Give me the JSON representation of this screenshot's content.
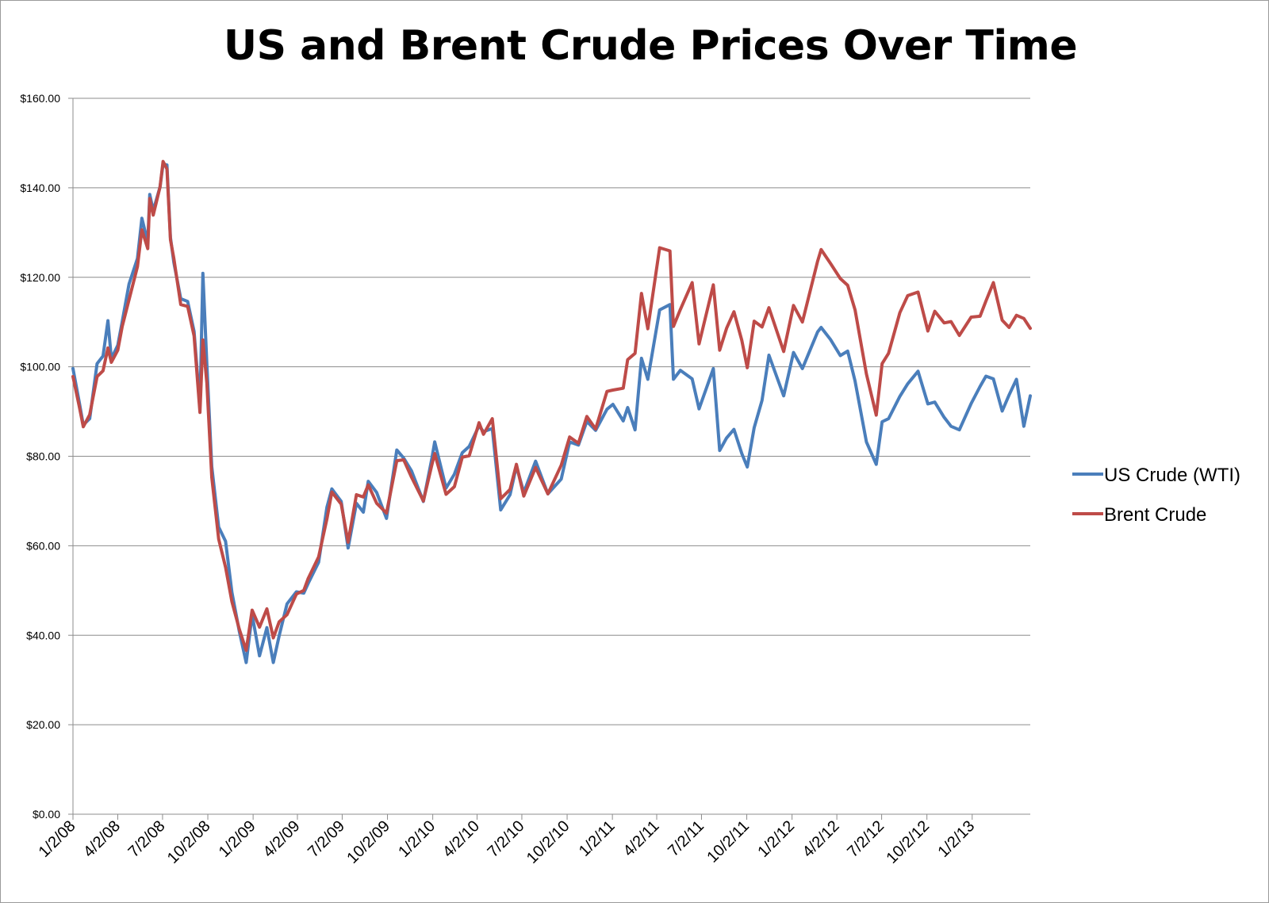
{
  "chart_data": {
    "type": "line",
    "title": "US and Brent Crude Prices Over Time",
    "xlabel": "",
    "ylabel": "",
    "ylim": [
      0,
      160
    ],
    "y_ticks": [
      "$0.00",
      "$20.00",
      "$40.00",
      "$60.00",
      "$80.00",
      "$100.00",
      "$120.00",
      "$140.00",
      "$160.00"
    ],
    "x_range": [
      "2008-01-02",
      "2013-04-30"
    ],
    "x_ticks": [
      "1/2/08",
      "4/2/08",
      "7/2/08",
      "10/2/08",
      "1/2/09",
      "4/2/09",
      "7/2/09",
      "10/2/09",
      "1/2/10",
      "4/2/10",
      "7/2/10",
      "10/2/10",
      "1/2/11",
      "4/2/11",
      "7/2/11",
      "10/2/11",
      "1/2/12",
      "4/2/12",
      "7/2/12",
      "10/2/12",
      "1/2/13"
    ],
    "x_tick_dates": [
      "2008-01-02",
      "2008-04-02",
      "2008-07-02",
      "2008-10-02",
      "2009-01-02",
      "2009-04-02",
      "2009-07-02",
      "2009-10-02",
      "2010-01-02",
      "2010-04-02",
      "2010-07-02",
      "2010-10-02",
      "2011-01-02",
      "2011-04-02",
      "2011-07-02",
      "2011-10-02",
      "2012-01-02",
      "2012-04-02",
      "2012-07-02",
      "2012-10-02",
      "2013-01-02"
    ],
    "grid": true,
    "legend_position": "right",
    "series": [
      {
        "name": "US Crude (WTI)",
        "color": "#4a7ebb",
        "points": [
          [
            "2008-01-02",
            99.6
          ],
          [
            "2008-01-15",
            91.9
          ],
          [
            "2008-01-23",
            87.0
          ],
          [
            "2008-02-05",
            88.4
          ],
          [
            "2008-02-20",
            100.7
          ],
          [
            "2008-03-03",
            102.4
          ],
          [
            "2008-03-13",
            110.3
          ],
          [
            "2008-03-20",
            101.8
          ],
          [
            "2008-04-02",
            104.8
          ],
          [
            "2008-04-11",
            110.1
          ],
          [
            "2008-04-25",
            118.5
          ],
          [
            "2008-05-12",
            124.2
          ],
          [
            "2008-05-21",
            133.2
          ],
          [
            "2008-06-02",
            127.8
          ],
          [
            "2008-06-06",
            138.5
          ],
          [
            "2008-06-13",
            134.9
          ],
          [
            "2008-06-27",
            140.2
          ],
          [
            "2008-07-03",
            145.3
          ],
          [
            "2008-07-11",
            145.1
          ],
          [
            "2008-07-18",
            128.9
          ],
          [
            "2008-07-25",
            123.3
          ],
          [
            "2008-08-08",
            115.2
          ],
          [
            "2008-08-22",
            114.6
          ],
          [
            "2008-09-04",
            107.9
          ],
          [
            "2008-09-16",
            91.2
          ],
          [
            "2008-09-22",
            120.9
          ],
          [
            "2008-09-30",
            100.6
          ],
          [
            "2008-10-10",
            77.7
          ],
          [
            "2008-10-24",
            64.2
          ],
          [
            "2008-11-07",
            61.0
          ],
          [
            "2008-11-20",
            49.6
          ],
          [
            "2008-12-05",
            40.8
          ],
          [
            "2008-12-19",
            33.9
          ],
          [
            "2008-12-31",
            44.6
          ],
          [
            "2009-01-15",
            35.4
          ],
          [
            "2009-01-30",
            41.7
          ],
          [
            "2009-02-12",
            33.9
          ],
          [
            "2009-02-24",
            39.9
          ],
          [
            "2009-03-12",
            47.0
          ],
          [
            "2009-03-31",
            49.7
          ],
          [
            "2009-04-15",
            49.4
          ],
          [
            "2009-04-24",
            51.6
          ],
          [
            "2009-05-15",
            56.3
          ],
          [
            "2009-06-01",
            68.6
          ],
          [
            "2009-06-11",
            72.7
          ],
          [
            "2009-06-30",
            69.9
          ],
          [
            "2009-07-14",
            59.5
          ],
          [
            "2009-07-31",
            69.5
          ],
          [
            "2009-08-14",
            67.5
          ],
          [
            "2009-08-24",
            74.4
          ],
          [
            "2009-09-10",
            71.9
          ],
          [
            "2009-09-30",
            66.1
          ],
          [
            "2009-10-21",
            81.4
          ],
          [
            "2009-11-04",
            79.6
          ],
          [
            "2009-11-20",
            76.7
          ],
          [
            "2009-12-14",
            69.9
          ],
          [
            "2009-12-31",
            79.4
          ],
          [
            "2010-01-06",
            83.2
          ],
          [
            "2010-01-29",
            72.9
          ],
          [
            "2010-02-15",
            76.0
          ],
          [
            "2010-03-03",
            80.8
          ],
          [
            "2010-03-17",
            82.2
          ],
          [
            "2010-04-06",
            86.8
          ],
          [
            "2010-04-15",
            85.5
          ],
          [
            "2010-05-03",
            86.2
          ],
          [
            "2010-05-20",
            68.0
          ],
          [
            "2010-06-08",
            71.4
          ],
          [
            "2010-06-21",
            77.8
          ],
          [
            "2010-07-06",
            71.9
          ],
          [
            "2010-07-30",
            78.9
          ],
          [
            "2010-08-24",
            71.6
          ],
          [
            "2010-09-20",
            74.9
          ],
          [
            "2010-10-07",
            83.2
          ],
          [
            "2010-10-25",
            82.5
          ],
          [
            "2010-11-11",
            87.8
          ],
          [
            "2010-11-29",
            85.8
          ],
          [
            "2010-12-22",
            90.5
          ],
          [
            "2011-01-03",
            91.6
          ],
          [
            "2011-01-24",
            87.9
          ],
          [
            "2011-02-02",
            90.9
          ],
          [
            "2011-02-17",
            85.9
          ],
          [
            "2011-03-02",
            101.9
          ],
          [
            "2011-03-15",
            97.2
          ],
          [
            "2011-04-08",
            112.7
          ],
          [
            "2011-04-29",
            113.9
          ],
          [
            "2011-05-06",
            97.2
          ],
          [
            "2011-05-20",
            99.2
          ],
          [
            "2011-06-13",
            97.3
          ],
          [
            "2011-06-27",
            90.6
          ],
          [
            "2011-07-26",
            99.6
          ],
          [
            "2011-08-08",
            81.3
          ],
          [
            "2011-08-22",
            84.1
          ],
          [
            "2011-09-06",
            86.0
          ],
          [
            "2011-09-22",
            80.6
          ],
          [
            "2011-10-03",
            77.6
          ],
          [
            "2011-10-17",
            86.4
          ],
          [
            "2011-11-02",
            92.5
          ],
          [
            "2011-11-16",
            102.6
          ],
          [
            "2011-12-16",
            93.5
          ],
          [
            "2012-01-05",
            103.2
          ],
          [
            "2012-01-23",
            99.6
          ],
          [
            "2012-02-23",
            107.8
          ],
          [
            "2012-03-01",
            108.8
          ],
          [
            "2012-03-20",
            106.1
          ],
          [
            "2012-04-09",
            102.5
          ],
          [
            "2012-04-24",
            103.5
          ],
          [
            "2012-05-09",
            96.8
          ],
          [
            "2012-06-01",
            83.2
          ],
          [
            "2012-06-21",
            78.2
          ],
          [
            "2012-07-03",
            87.7
          ],
          [
            "2012-07-16",
            88.4
          ],
          [
            "2012-08-08",
            93.4
          ],
          [
            "2012-08-24",
            96.2
          ],
          [
            "2012-09-14",
            99.0
          ],
          [
            "2012-10-04",
            91.7
          ],
          [
            "2012-10-18",
            92.1
          ],
          [
            "2012-11-06",
            88.7
          ],
          [
            "2012-11-20",
            86.7
          ],
          [
            "2012-12-07",
            85.9
          ],
          [
            "2012-12-31",
            91.8
          ],
          [
            "2013-01-18",
            95.6
          ],
          [
            "2013-01-30",
            97.9
          ],
          [
            "2013-02-14",
            97.3
          ],
          [
            "2013-03-04",
            90.1
          ],
          [
            "2013-03-18",
            93.7
          ],
          [
            "2013-04-02",
            97.2
          ],
          [
            "2013-04-17",
            86.7
          ],
          [
            "2013-04-30",
            93.5
          ]
        ]
      },
      {
        "name": "Brent Crude",
        "color": "#be4b48",
        "points": [
          [
            "2008-01-02",
            97.8
          ],
          [
            "2008-01-15",
            91.0
          ],
          [
            "2008-01-23",
            86.6
          ],
          [
            "2008-02-05",
            89.3
          ],
          [
            "2008-02-20",
            97.8
          ],
          [
            "2008-03-03",
            99.1
          ],
          [
            "2008-03-13",
            104.2
          ],
          [
            "2008-03-20",
            101.0
          ],
          [
            "2008-04-02",
            103.7
          ],
          [
            "2008-04-11",
            109.0
          ],
          [
            "2008-04-25",
            115.0
          ],
          [
            "2008-05-12",
            122.4
          ],
          [
            "2008-05-21",
            130.6
          ],
          [
            "2008-06-02",
            126.4
          ],
          [
            "2008-06-06",
            137.6
          ],
          [
            "2008-06-13",
            133.9
          ],
          [
            "2008-06-27",
            140.2
          ],
          [
            "2008-07-03",
            145.9
          ],
          [
            "2008-07-11",
            144.2
          ],
          [
            "2008-07-18",
            128.4
          ],
          [
            "2008-07-25",
            124.2
          ],
          [
            "2008-08-08",
            113.9
          ],
          [
            "2008-08-22",
            113.5
          ],
          [
            "2008-09-04",
            106.9
          ],
          [
            "2008-09-16",
            89.8
          ],
          [
            "2008-09-22",
            106.0
          ],
          [
            "2008-09-30",
            96.4
          ],
          [
            "2008-10-10",
            75.3
          ],
          [
            "2008-10-24",
            61.5
          ],
          [
            "2008-11-07",
            55.2
          ],
          [
            "2008-11-20",
            47.5
          ],
          [
            "2008-12-05",
            41.3
          ],
          [
            "2008-12-19",
            36.6
          ],
          [
            "2008-12-31",
            45.6
          ],
          [
            "2009-01-15",
            41.8
          ],
          [
            "2009-01-30",
            45.9
          ],
          [
            "2009-02-12",
            39.4
          ],
          [
            "2009-02-24",
            43.0
          ],
          [
            "2009-03-12",
            44.6
          ],
          [
            "2009-03-31",
            49.2
          ],
          [
            "2009-04-15",
            50.0
          ],
          [
            "2009-04-24",
            52.7
          ],
          [
            "2009-05-15",
            57.5
          ],
          [
            "2009-06-01",
            66.0
          ],
          [
            "2009-06-11",
            72.0
          ],
          [
            "2009-06-30",
            69.3
          ],
          [
            "2009-07-14",
            60.8
          ],
          [
            "2009-07-31",
            71.4
          ],
          [
            "2009-08-14",
            70.9
          ],
          [
            "2009-08-24",
            73.6
          ],
          [
            "2009-09-10",
            69.5
          ],
          [
            "2009-09-30",
            67.3
          ],
          [
            "2009-10-21",
            79.0
          ],
          [
            "2009-11-04",
            79.2
          ],
          [
            "2009-11-20",
            75.3
          ],
          [
            "2009-12-14",
            70.0
          ],
          [
            "2009-12-31",
            78.0
          ],
          [
            "2010-01-06",
            80.6
          ],
          [
            "2010-01-29",
            71.5
          ],
          [
            "2010-02-15",
            73.2
          ],
          [
            "2010-03-03",
            79.8
          ],
          [
            "2010-03-17",
            80.1
          ],
          [
            "2010-04-06",
            87.5
          ],
          [
            "2010-04-15",
            84.9
          ],
          [
            "2010-05-03",
            88.4
          ],
          [
            "2010-05-20",
            70.5
          ],
          [
            "2010-06-08",
            72.6
          ],
          [
            "2010-06-21",
            78.2
          ],
          [
            "2010-07-06",
            71.1
          ],
          [
            "2010-07-30",
            77.5
          ],
          [
            "2010-08-24",
            71.6
          ],
          [
            "2010-09-20",
            78.0
          ],
          [
            "2010-10-07",
            84.3
          ],
          [
            "2010-10-25",
            82.9
          ],
          [
            "2010-11-11",
            88.9
          ],
          [
            "2010-11-29",
            86.1
          ],
          [
            "2010-12-22",
            94.5
          ],
          [
            "2011-01-03",
            94.8
          ],
          [
            "2011-01-24",
            95.2
          ],
          [
            "2011-02-02",
            101.6
          ],
          [
            "2011-02-17",
            103.0
          ],
          [
            "2011-03-02",
            116.4
          ],
          [
            "2011-03-15",
            108.5
          ],
          [
            "2011-04-08",
            126.6
          ],
          [
            "2011-04-29",
            125.9
          ],
          [
            "2011-05-06",
            109.0
          ],
          [
            "2011-05-20",
            112.8
          ],
          [
            "2011-06-13",
            118.8
          ],
          [
            "2011-06-27",
            105.1
          ],
          [
            "2011-07-26",
            118.3
          ],
          [
            "2011-08-08",
            103.7
          ],
          [
            "2011-08-22",
            108.6
          ],
          [
            "2011-09-06",
            112.3
          ],
          [
            "2011-09-22",
            105.9
          ],
          [
            "2011-10-03",
            99.8
          ],
          [
            "2011-10-17",
            110.2
          ],
          [
            "2011-11-02",
            108.9
          ],
          [
            "2011-11-16",
            113.2
          ],
          [
            "2011-12-16",
            103.4
          ],
          [
            "2012-01-05",
            113.7
          ],
          [
            "2012-01-23",
            110.0
          ],
          [
            "2012-02-23",
            123.6
          ],
          [
            "2012-03-01",
            126.2
          ],
          [
            "2012-03-20",
            123.1
          ],
          [
            "2012-04-09",
            119.7
          ],
          [
            "2012-04-24",
            118.2
          ],
          [
            "2012-05-09",
            112.7
          ],
          [
            "2012-06-01",
            98.4
          ],
          [
            "2012-06-21",
            89.2
          ],
          [
            "2012-07-03",
            100.7
          ],
          [
            "2012-07-16",
            103.0
          ],
          [
            "2012-08-08",
            112.1
          ],
          [
            "2012-08-24",
            115.9
          ],
          [
            "2012-09-14",
            116.7
          ],
          [
            "2012-10-04",
            108.0
          ],
          [
            "2012-10-18",
            112.4
          ],
          [
            "2012-11-06",
            109.8
          ],
          [
            "2012-11-20",
            110.1
          ],
          [
            "2012-12-07",
            107.0
          ],
          [
            "2012-12-31",
            111.1
          ],
          [
            "2013-01-18",
            111.3
          ],
          [
            "2013-01-30",
            114.7
          ],
          [
            "2013-02-14",
            118.8
          ],
          [
            "2013-03-04",
            110.4
          ],
          [
            "2013-03-18",
            108.8
          ],
          [
            "2013-04-02",
            111.5
          ],
          [
            "2013-04-17",
            110.8
          ],
          [
            "2013-04-30",
            108.6
          ]
        ]
      }
    ]
  }
}
